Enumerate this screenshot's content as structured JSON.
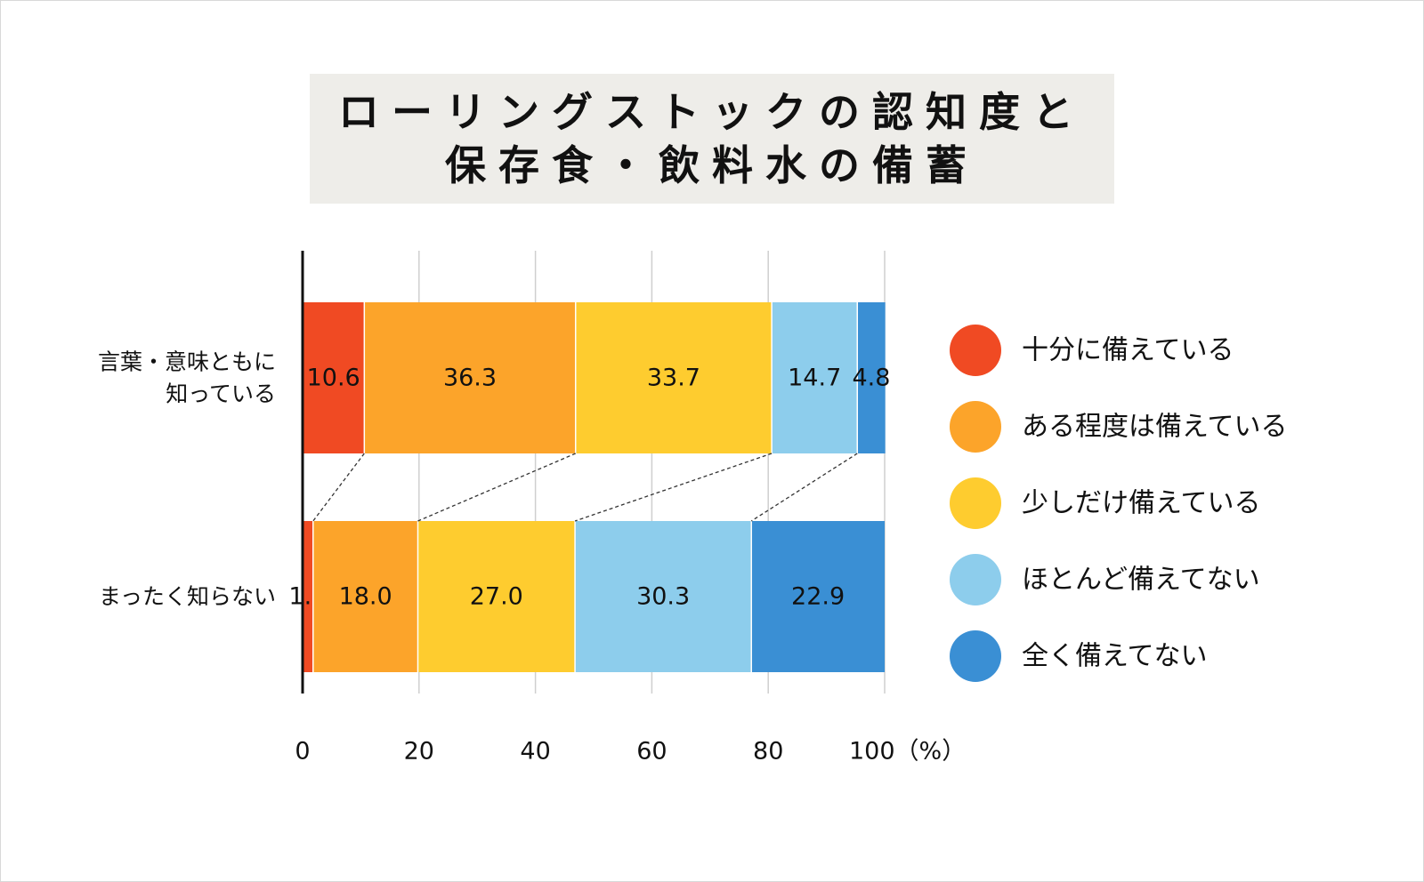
{
  "title": {
    "line1": "ローリングストックの認知度と",
    "line2": "保存食・飲料水の備蓄"
  },
  "chart_data": {
    "type": "bar",
    "orientation": "horizontal",
    "stacked": true,
    "categories": [
      {
        "lines": [
          "言葉・意味ともに",
          "知っている"
        ]
      },
      {
        "lines": [
          "まったく知らない"
        ]
      }
    ],
    "series": [
      {
        "name": "十分に備えている",
        "color": "#f04a23",
        "values": [
          10.6,
          1.8
        ]
      },
      {
        "name": "ある程度は備えている",
        "color": "#fca42a",
        "values": [
          36.3,
          18.0
        ]
      },
      {
        "name": "少しだけ備えている",
        "color": "#fecc2f",
        "values": [
          33.7,
          27.0
        ]
      },
      {
        "name": "ほとんど備えてない",
        "color": "#8dcdec",
        "values": [
          14.7,
          30.3
        ]
      },
      {
        "name": "全く備えてない",
        "color": "#3a8fd4",
        "values": [
          4.8,
          22.9
        ]
      }
    ],
    "xlim": [
      0,
      100
    ],
    "xticks": [
      {
        "value": 0,
        "label": "0"
      },
      {
        "value": 20,
        "label": "20"
      },
      {
        "value": 40,
        "label": "40"
      },
      {
        "value": 60,
        "label": "60"
      },
      {
        "value": 80,
        "label": "80"
      },
      {
        "value": 100,
        "label": "100（%）"
      }
    ],
    "grid": true,
    "connector_lines": true,
    "legend_position": "right"
  }
}
